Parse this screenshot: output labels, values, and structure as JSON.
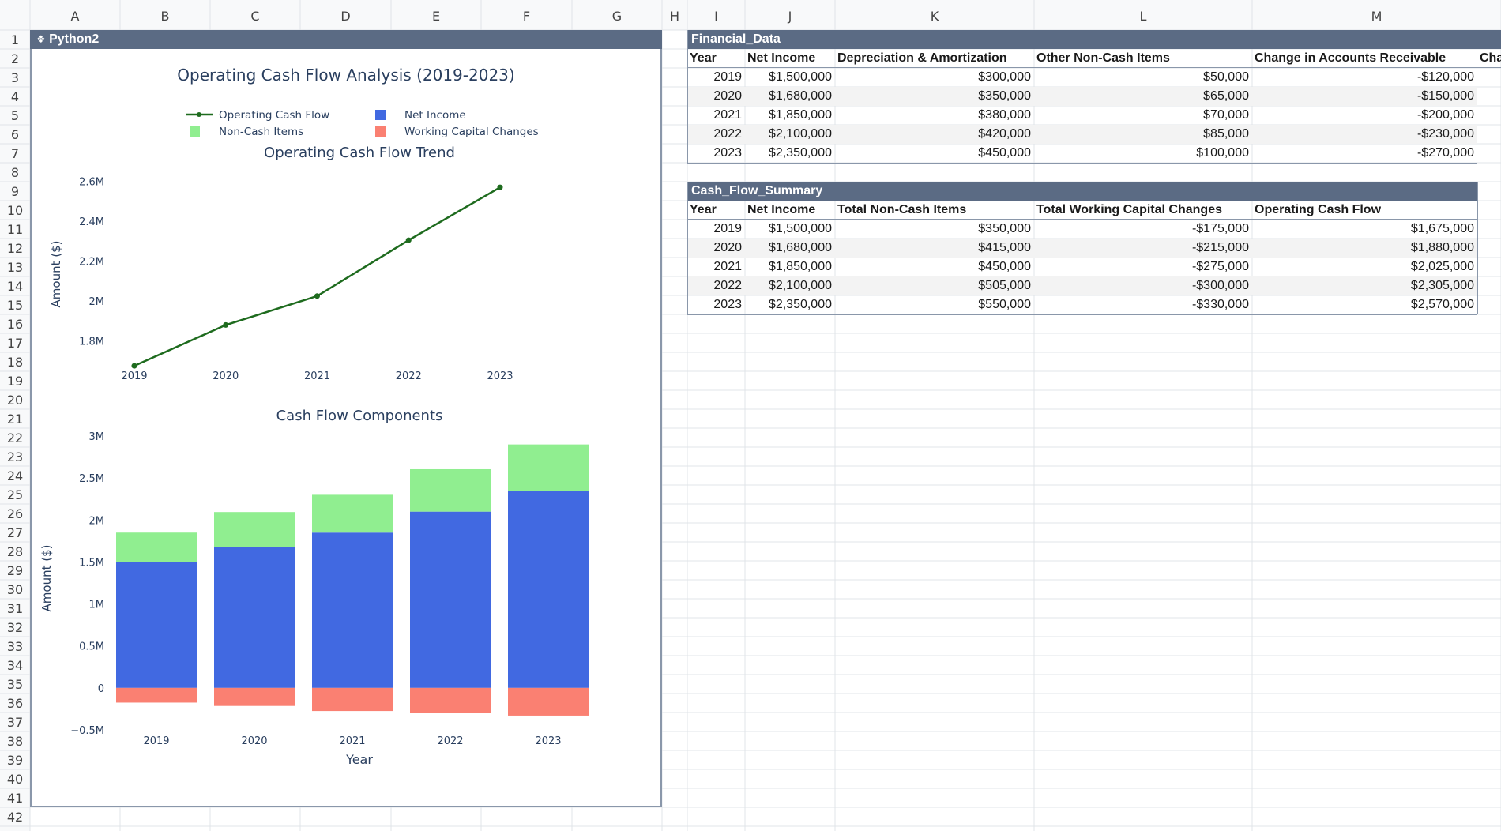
{
  "sheet": {
    "columns": [
      "A",
      "B",
      "C",
      "D",
      "E",
      "F",
      "G",
      "H",
      "I",
      "J",
      "K",
      "L",
      "M"
    ],
    "rows": [
      "1",
      "2",
      "3",
      "4",
      "5",
      "6",
      "7",
      "8",
      "9",
      "10",
      "11",
      "12",
      "13",
      "14",
      "15",
      "16",
      "17",
      "18",
      "19",
      "20",
      "21",
      "22",
      "23",
      "24",
      "25",
      "26",
      "27",
      "28",
      "29",
      "30",
      "31",
      "32",
      "33",
      "34",
      "35",
      "36",
      "37",
      "38",
      "39",
      "40",
      "41",
      "42"
    ]
  },
  "python_object": {
    "title": "Python2",
    "icon": "python-icon"
  },
  "financial_data": {
    "name": "Financial_Data",
    "headers": [
      "Year",
      "Net Income",
      "Depreciation & Amortization",
      "Other Non-Cash Items",
      "Change in Accounts Receivable",
      "Cha"
    ],
    "rows": [
      [
        "2019",
        "$1,500,000",
        "$300,000",
        "$50,000",
        "-$120,000"
      ],
      [
        "2020",
        "$1,680,000",
        "$350,000",
        "$65,000",
        "-$150,000"
      ],
      [
        "2021",
        "$1,850,000",
        "$380,000",
        "$70,000",
        "-$200,000"
      ],
      [
        "2022",
        "$2,100,000",
        "$420,000",
        "$85,000",
        "-$230,000"
      ],
      [
        "2023",
        "$2,350,000",
        "$450,000",
        "$100,000",
        "-$270,000"
      ]
    ]
  },
  "cash_flow_summary": {
    "name": "Cash_Flow_Summary",
    "headers": [
      "Year",
      "Net Income",
      "Total Non-Cash Items",
      "Total Working Capital Changes",
      "Operating Cash Flow"
    ],
    "rows": [
      [
        "2019",
        "$1,500,000",
        "$350,000",
        "-$175,000",
        "$1,675,000"
      ],
      [
        "2020",
        "$1,680,000",
        "$415,000",
        "-$215,000",
        "$1,880,000"
      ],
      [
        "2021",
        "$1,850,000",
        "$450,000",
        "-$275,000",
        "$2,025,000"
      ],
      [
        "2022",
        "$2,100,000",
        "$505,000",
        "-$300,000",
        "$2,305,000"
      ],
      [
        "2023",
        "$2,350,000",
        "$550,000",
        "-$330,000",
        "$2,570,000"
      ]
    ]
  },
  "chart_data": {
    "title": "Operating Cash Flow Analysis (2019-2023)",
    "legend": [
      {
        "name": "Operating Cash Flow",
        "color": "#1e6b1e",
        "kind": "line"
      },
      {
        "name": "Net Income",
        "color": "#4169e1",
        "kind": "square"
      },
      {
        "name": "Non-Cash Items",
        "color": "#90ee90",
        "kind": "square"
      },
      {
        "name": "Working Capital Changes",
        "color": "#fa8072",
        "kind": "square"
      }
    ],
    "charts": [
      {
        "type": "line",
        "title": "Operating Cash Flow Trend",
        "ylabel": "Amount ($)",
        "categories": [
          "2019",
          "2020",
          "2021",
          "2022",
          "2023"
        ],
        "values": [
          1675000,
          1880000,
          2025000,
          2305000,
          2570000
        ],
        "ylim": [
          1640000,
          2630000
        ],
        "yticks": [
          1800000,
          2000000,
          2200000,
          2400000,
          2600000
        ],
        "ytick_labels": [
          "1.8M",
          "2M",
          "2.2M",
          "2.4M",
          "2.6M"
        ],
        "color": "#1e6b1e"
      },
      {
        "type": "bar",
        "stacked": true,
        "title": "Cash Flow Components",
        "xlabel": "Year",
        "ylabel": "Amount ($)",
        "categories": [
          "2019",
          "2020",
          "2021",
          "2022",
          "2023"
        ],
        "series": [
          {
            "name": "Net Income",
            "color": "#4169e1",
            "values": [
              1500000,
              1680000,
              1850000,
              2100000,
              2350000
            ]
          },
          {
            "name": "Non-Cash Items",
            "color": "#90ee90",
            "values": [
              350000,
              415000,
              450000,
              505000,
              550000
            ]
          },
          {
            "name": "Working Capital Changes",
            "color": "#fa8072",
            "values": [
              -175000,
              -215000,
              -275000,
              -300000,
              -330000
            ]
          }
        ],
        "ylim": [
          -500000,
          3000000
        ],
        "yticks": [
          -500000,
          0,
          500000,
          1000000,
          1500000,
          2000000,
          2500000,
          3000000
        ],
        "ytick_labels": [
          "−0.5M",
          "0",
          "0.5M",
          "1M",
          "1.5M",
          "2M",
          "2.5M",
          "3M"
        ]
      }
    ]
  }
}
